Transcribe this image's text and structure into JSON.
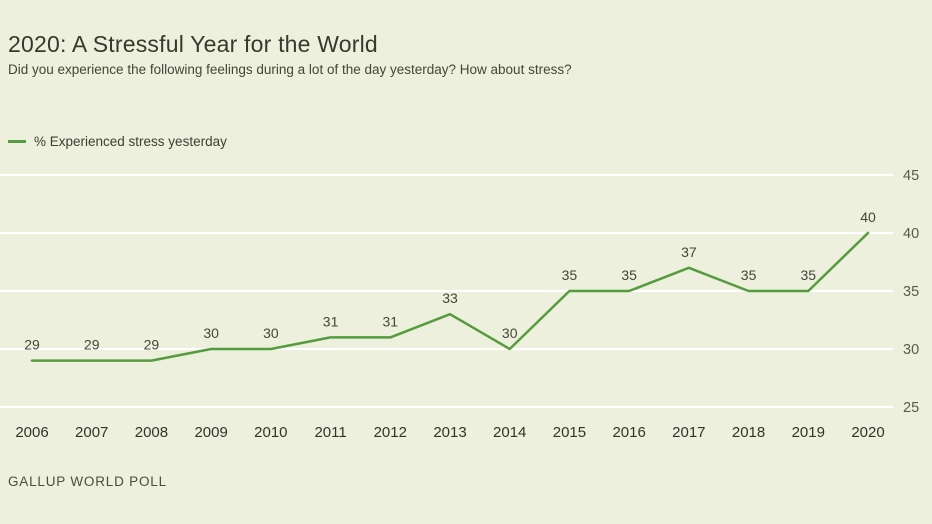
{
  "header": {
    "title": "2020: A Stressful Year for the World",
    "subtitle": "Did you experience the following feelings during a lot of the day yesterday? How about stress?"
  },
  "legend": {
    "label": "% Experienced stress yesterday"
  },
  "footer": {
    "source": "GALLUP WORLD POLL"
  },
  "colors": {
    "background": "#ecf0dc",
    "line": "#569b3e",
    "grid": "#ffffff",
    "axis_text": "#5a5a50",
    "label_text": "#45453b",
    "x_text": "#33332c"
  },
  "chart_data": {
    "type": "line",
    "title": "2020: A Stressful Year for the World",
    "subtitle": "Did you experience the following feelings during a lot of the day yesterday? How about stress?",
    "categories": [
      "2006",
      "2007",
      "2008",
      "2009",
      "2010",
      "2011",
      "2012",
      "2013",
      "2014",
      "2015",
      "2016",
      "2017",
      "2018",
      "2019",
      "2020"
    ],
    "series": [
      {
        "name": "% Experienced stress yesterday",
        "values": [
          29,
          29,
          29,
          30,
          30,
          31,
          31,
          33,
          30,
          35,
          35,
          37,
          35,
          35,
          40
        ]
      }
    ],
    "xlabel": "",
    "ylabel": "",
    "ylim": [
      25,
      45
    ],
    "yticks": [
      25,
      30,
      35,
      40,
      45
    ],
    "grid": true,
    "legend_position": "top-left",
    "source": "GALLUP WORLD POLL"
  }
}
